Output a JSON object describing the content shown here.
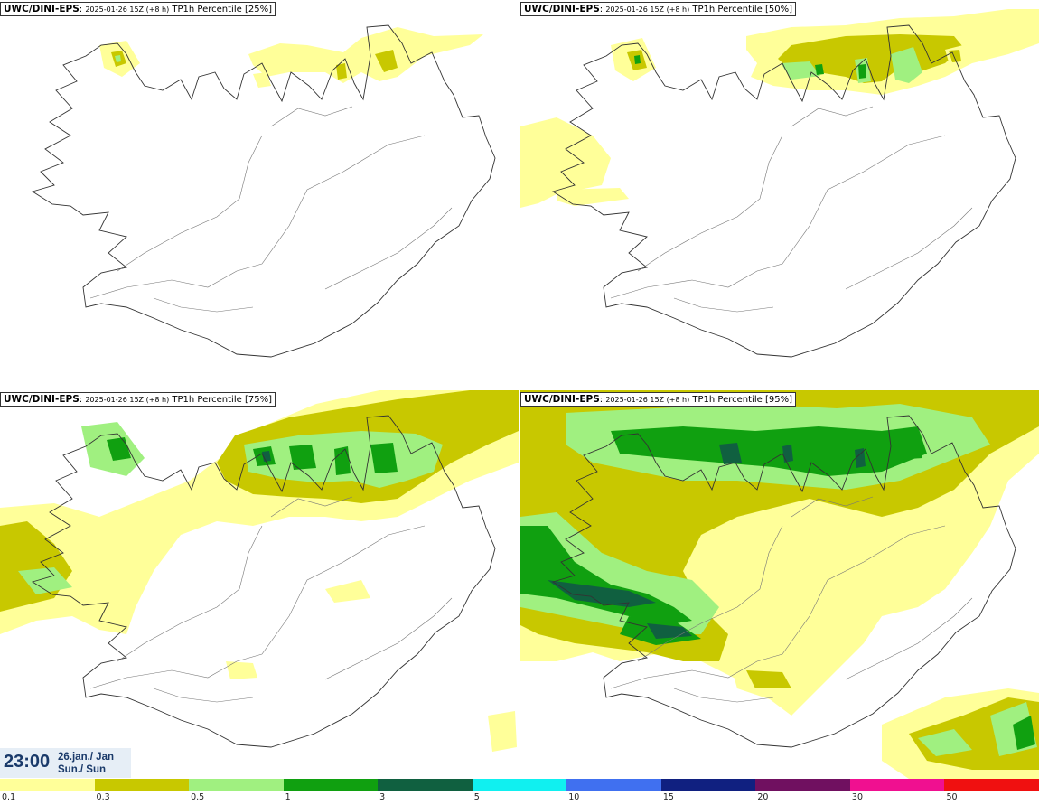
{
  "panels": [
    {
      "label_bold": "UWC/DINI-EPS",
      "label_small": "2025-01-26 15Z (+8 h)",
      "label_rest": "TP1h Percentile [25%]",
      "level": 0
    },
    {
      "label_bold": "UWC/DINI-EPS",
      "label_small": "2025-01-26 15Z (+8 h)",
      "label_rest": "TP1h Percentile [50%]",
      "level": 1
    },
    {
      "label_bold": "UWC/DINI-EPS",
      "label_small": "2025-01-26 15Z (+8 h)",
      "label_rest": "TP1h Percentile [75%]",
      "level": 2
    },
    {
      "label_bold": "UWC/DINI-EPS",
      "label_small": "2025-01-26 15Z (+8 h)",
      "label_rest": "TP1h Percentile [95%]",
      "level": 3
    }
  ],
  "valid_time": {
    "time": "23:00",
    "date_line1": "26.jan./ Jan",
    "date_line2": "Sun./ Sun"
  },
  "legend": {
    "colors": [
      "#ffff99",
      "#c8c800",
      "#a0f080",
      "#10a010",
      "#106040",
      "#10f0f0",
      "#4070f0",
      "#102080",
      "#701060",
      "#f01090",
      "#f01010"
    ],
    "labels": [
      "0.1",
      "0.3",
      "0.5",
      "1",
      "3",
      "5",
      "10",
      "15",
      "20",
      "30",
      "50"
    ]
  },
  "colors": {
    "c01": "#ffff99",
    "c03": "#c8c800",
    "c05": "#a0f080",
    "c1": "#10a010",
    "c3": "#106040",
    "coast": "#333333"
  }
}
